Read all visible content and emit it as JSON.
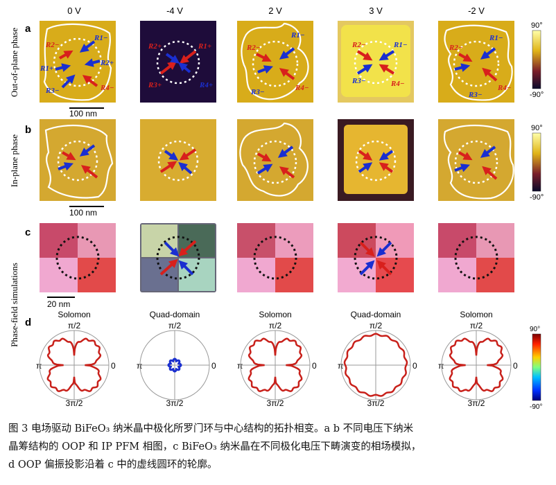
{
  "columns": [
    "0 V",
    "-4 V",
    "2 V",
    "3 V",
    "-2 V"
  ],
  "panel_letters": [
    "a",
    "b",
    "c",
    "d"
  ],
  "row_labels": [
    "Out-of-plane phase",
    "In-plane phase",
    "Phase-field simulations"
  ],
  "scale_bars": [
    "100 nm",
    "100 nm",
    "20 nm"
  ],
  "colorbars": {
    "oop": {
      "top": "90°",
      "bottom": "-90°"
    },
    "ip": {
      "top": "90°",
      "bottom": "-90°"
    },
    "polar": {
      "top": "90°",
      "bottom": "-90°"
    }
  },
  "polar": {
    "titles": [
      "Solomon",
      "Quad-domain",
      "Solomon",
      "Quad-domain",
      "Solomon"
    ],
    "angle_labels": {
      "top": "π/2",
      "left": "π",
      "right": "0",
      "bottom": "3π/2"
    }
  },
  "arrow_labels": {
    "oop_0V": [
      "R2−",
      "R1−",
      "R1+",
      "R2+",
      "R3−",
      "R4−"
    ],
    "oop_m4V": [
      "R2+",
      "R1+",
      "R3+",
      "R4+"
    ],
    "oop_2V": [
      "R2−",
      "R1−",
      "R3−",
      "R4−"
    ],
    "oop_3V": [
      "R2−",
      "R1−",
      "R3−",
      "R4−"
    ],
    "oop_m2V": [
      "R2−",
      "R1−",
      "R3−",
      "R4−"
    ]
  },
  "caption": {
    "line1": "图 3 电场驱动 BiFeO₃ 纳米晶中极化所罗门环与中心结构的拓扑相变。a b 不同电压下纳米",
    "line2": "晶筹结构的 OOP 和 IP PFM 相图，c BiFeO₃ 纳米晶在不同极化电压下畴演变的相场模拟，",
    "line3": "d OOP 偏振投影沿着 c 中的虚线圆环的轮廓。"
  },
  "colors": {
    "pfm_yellow": "#e0b418",
    "pfm_dark": "#3a1a2a",
    "arrow_red": "#d8201c",
    "arrow_blue": "#1a2fd0",
    "polar_line": "#c8201a"
  }
}
